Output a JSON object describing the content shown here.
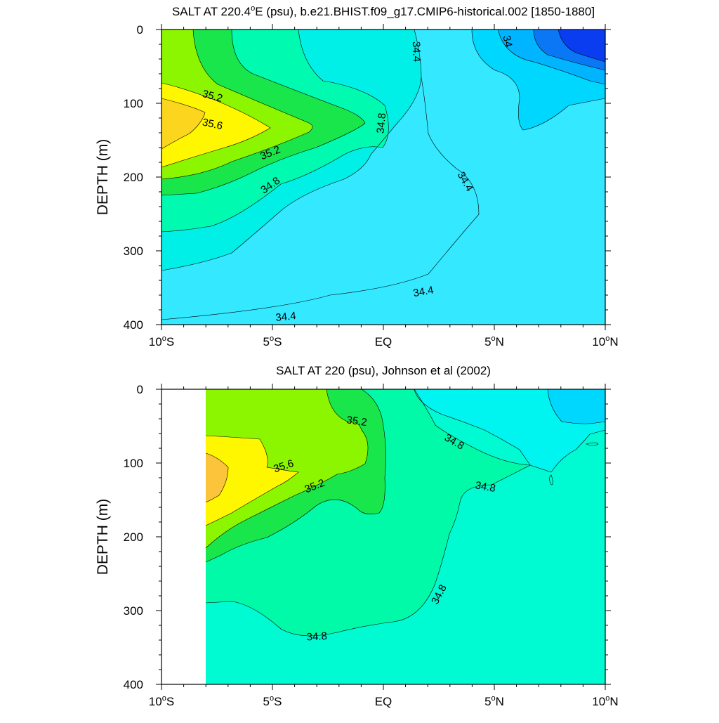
{
  "chart_data": [
    {
      "type": "contour",
      "title_main": "SALT AT 220.4",
      "title_deg": "o",
      "title_rest": "E (psu), b.e21.BHIST.f09_g17.CMIP6-historical.002 [1850-1880]",
      "ylabel": "DEPTH (m)",
      "xlim": [
        -10,
        10
      ],
      "ylim": [
        400,
        0
      ],
      "x_ticks": [
        {
          "value": -10,
          "num": "10",
          "deg": "o",
          "hem": "S"
        },
        {
          "value": -5,
          "num": "5",
          "deg": "o",
          "hem": "S"
        },
        {
          "value": 0,
          "num": "EQ",
          "deg": "",
          "hem": ""
        },
        {
          "value": 5,
          "num": "5",
          "deg": "o",
          "hem": "N"
        },
        {
          "value": 10,
          "num": "10",
          "deg": "o",
          "hem": "N"
        }
      ],
      "y_ticks": [
        "0",
        "100",
        "200",
        "300",
        "400"
      ],
      "y_tick_values": [
        0,
        100,
        200,
        300,
        400
      ],
      "colors": {
        "below_34": "#0a3cf0",
        "c34_0": "#0a78f5",
        "c34_2": "#00b4ff",
        "c34_4": "#00d7ff",
        "c34_6": "#33e8ff",
        "c34_8": "#00f0e8",
        "c35_0": "#00fab0",
        "c35_2": "#19e64a",
        "c35_4": "#8cf500",
        "c35_6": "#fff700",
        "c35_8": "#fcd61e"
      },
      "contour_labels": [
        {
          "text": "35.2",
          "x": -7.7,
          "y": 90,
          "rot": 15
        },
        {
          "text": "35.6",
          "x": -7.7,
          "y": 128,
          "rot": 12
        },
        {
          "text": "35.2",
          "x": -5.1,
          "y": 167,
          "rot": -22
        },
        {
          "text": "34.8",
          "x": -5.1,
          "y": 211,
          "rot": -35
        },
        {
          "text": "34.8",
          "x": -0.1,
          "y": 127,
          "rot": -85
        },
        {
          "text": "34.4",
          "x": 1.5,
          "y": 30,
          "rot": 88
        },
        {
          "text": "34",
          "x": 5.6,
          "y": 16,
          "rot": 78
        },
        {
          "text": "34.4",
          "x": 3.7,
          "y": 206,
          "rot": 60
        },
        {
          "text": "34.4",
          "x": 1.8,
          "y": 355,
          "rot": -10
        },
        {
          "text": "34.4",
          "x": -4.4,
          "y": 389,
          "rot": -6
        }
      ]
    },
    {
      "type": "contour",
      "title": "SALT AT 220 (psu), Johnson et al (2002)",
      "ylabel": "DEPTH (m)",
      "xlim": [
        -10,
        10
      ],
      "ylim": [
        400,
        0
      ],
      "data_x_range": [
        -8,
        10
      ],
      "x_ticks": [
        {
          "value": -10,
          "num": "10",
          "deg": "o",
          "hem": "S"
        },
        {
          "value": -5,
          "num": "5",
          "deg": "o",
          "hem": "S"
        },
        {
          "value": 0,
          "num": "EQ",
          "deg": "",
          "hem": ""
        },
        {
          "value": 5,
          "num": "5",
          "deg": "o",
          "hem": "N"
        },
        {
          "value": 10,
          "num": "10",
          "deg": "o",
          "hem": "N"
        }
      ],
      "y_ticks": [
        "0",
        "100",
        "200",
        "300",
        "400"
      ],
      "y_tick_values": [
        0,
        100,
        200,
        300,
        400
      ],
      "colors": {
        "c34_4": "#00d7ff",
        "c34_6": "#00f5f0",
        "c34_8": "#00fad2",
        "c35_0": "#00faa8",
        "c35_2": "#19e64a",
        "c35_4": "#8cf500",
        "c35_6": "#fff700",
        "c35_8": "#fcc43a"
      },
      "contour_labels": [
        {
          "text": "35.2",
          "x": -1.2,
          "y": 43,
          "rot": 8
        },
        {
          "text": "35.6",
          "x": -4.5,
          "y": 104,
          "rot": -18
        },
        {
          "text": "35.2",
          "x": -3.1,
          "y": 131,
          "rot": -22
        },
        {
          "text": "34.8",
          "x": 3.2,
          "y": 71,
          "rot": 30
        },
        {
          "text": "34.8",
          "x": 4.6,
          "y": 132,
          "rot": 10
        },
        {
          "text": "34.8",
          "x": 2.5,
          "y": 278,
          "rot": -62
        },
        {
          "text": "34.8",
          "x": -3.0,
          "y": 335,
          "rot": -3
        }
      ]
    }
  ]
}
